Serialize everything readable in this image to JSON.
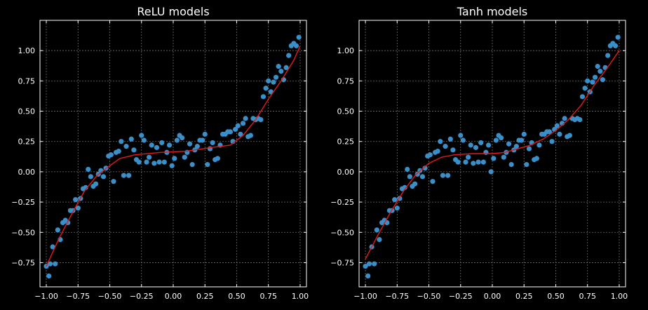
{
  "chart_data": [
    {
      "type": "scatter",
      "title": "ReLU models",
      "xlabel": "",
      "ylabel": "",
      "xlim": [
        -1.05,
        1.05
      ],
      "ylim": [
        -0.95,
        1.25
      ],
      "xticks": [
        -1.0,
        -0.75,
        -0.5,
        -0.25,
        0.0,
        0.25,
        0.5,
        0.75,
        1.0
      ],
      "yticks": [
        -0.75,
        -0.5,
        -0.25,
        0.0,
        0.25,
        0.5,
        0.75,
        1.0
      ],
      "xtick_labels": [
        "−1.00",
        "−0.75",
        "−0.50",
        "−0.25",
        "0.00",
        "0.25",
        "0.50",
        "0.75",
        "1.00"
      ],
      "ytick_labels": [
        "−0.75",
        "−0.50",
        "−0.25",
        "0.00",
        "0.25",
        "0.50",
        "0.75",
        "1.00"
      ],
      "grid": true,
      "series": [
        {
          "kind": "scatter",
          "color": "#3a8fc9",
          "points": [
            [
              -1.0,
              -0.78
            ],
            [
              -0.98,
              -0.86
            ],
            [
              -0.97,
              -0.76
            ],
            [
              -0.95,
              -0.62
            ],
            [
              -0.93,
              -0.76
            ],
            [
              -0.91,
              -0.48
            ],
            [
              -0.89,
              -0.56
            ],
            [
              -0.87,
              -0.42
            ],
            [
              -0.85,
              -0.4
            ],
            [
              -0.83,
              -0.42
            ],
            [
              -0.81,
              -0.32
            ],
            [
              -0.79,
              -0.32
            ],
            [
              -0.77,
              -0.23
            ],
            [
              -0.75,
              -0.3
            ],
            [
              -0.73,
              -0.22
            ],
            [
              -0.71,
              -0.14
            ],
            [
              -0.69,
              -0.13
            ],
            [
              -0.67,
              0.02
            ],
            [
              -0.65,
              -0.04
            ],
            [
              -0.63,
              -0.12
            ],
            [
              -0.61,
              -0.1
            ],
            [
              -0.59,
              -0.02
            ],
            [
              -0.57,
              0.01
            ],
            [
              -0.55,
              -0.04
            ],
            [
              -0.53,
              0.03
            ],
            [
              -0.51,
              0.13
            ],
            [
              -0.49,
              0.14
            ],
            [
              -0.47,
              -0.08
            ],
            [
              -0.45,
              0.16
            ],
            [
              -0.43,
              0.17
            ],
            [
              -0.41,
              0.25
            ],
            [
              -0.39,
              -0.03
            ],
            [
              -0.37,
              0.21
            ],
            [
              -0.35,
              -0.03
            ],
            [
              -0.33,
              0.27
            ],
            [
              -0.31,
              0.18
            ],
            [
              -0.29,
              0.1
            ],
            [
              -0.27,
              0.08
            ],
            [
              -0.25,
              0.3
            ],
            [
              -0.23,
              0.26
            ],
            [
              -0.21,
              0.08
            ],
            [
              -0.19,
              0.12
            ],
            [
              -0.17,
              0.22
            ],
            [
              -0.15,
              0.07
            ],
            [
              -0.13,
              0.2
            ],
            [
              -0.11,
              0.08
            ],
            [
              -0.09,
              0.24
            ],
            [
              -0.07,
              0.08
            ],
            [
              -0.05,
              0.16
            ],
            [
              -0.03,
              0.22
            ],
            [
              -0.01,
              0.05
            ],
            [
              0.01,
              0.11
            ],
            [
              0.03,
              0.26
            ],
            [
              0.05,
              0.3
            ],
            [
              0.07,
              0.28
            ],
            [
              0.09,
              0.12
            ],
            [
              0.11,
              0.16
            ],
            [
              0.13,
              0.23
            ],
            [
              0.15,
              0.06
            ],
            [
              0.17,
              0.18
            ],
            [
              0.19,
              0.21
            ],
            [
              0.21,
              0.26
            ],
            [
              0.23,
              0.26
            ],
            [
              0.25,
              0.31
            ],
            [
              0.27,
              0.06
            ],
            [
              0.29,
              0.19
            ],
            [
              0.31,
              0.24
            ],
            [
              0.33,
              0.1
            ],
            [
              0.35,
              0.11
            ],
            [
              0.37,
              0.22
            ],
            [
              0.39,
              0.31
            ],
            [
              0.41,
              0.31
            ],
            [
              0.43,
              0.33
            ],
            [
              0.45,
              0.33
            ],
            [
              0.47,
              0.25
            ],
            [
              0.49,
              0.35
            ],
            [
              0.51,
              0.38
            ],
            [
              0.53,
              0.31
            ],
            [
              0.55,
              0.4
            ],
            [
              0.57,
              0.44
            ],
            [
              0.59,
              0.29
            ],
            [
              0.61,
              0.3
            ],
            [
              0.63,
              0.44
            ],
            [
              0.65,
              0.43
            ],
            [
              0.67,
              0.44
            ],
            [
              0.69,
              0.43
            ],
            [
              0.71,
              0.62
            ],
            [
              0.73,
              0.69
            ],
            [
              0.75,
              0.75
            ],
            [
              0.77,
              0.66
            ],
            [
              0.79,
              0.74
            ],
            [
              0.81,
              0.78
            ],
            [
              0.83,
              0.87
            ],
            [
              0.85,
              0.83
            ],
            [
              0.87,
              0.76
            ],
            [
              0.89,
              0.86
            ],
            [
              0.91,
              0.96
            ],
            [
              0.93,
              1.04
            ],
            [
              0.95,
              1.06
            ],
            [
              0.97,
              1.04
            ],
            [
              0.99,
              1.11
            ]
          ]
        },
        {
          "kind": "line",
          "color": "#e31a1c",
          "points": [
            [
              -1.0,
              -0.78
            ],
            [
              -0.9,
              -0.55
            ],
            [
              -0.8,
              -0.35
            ],
            [
              -0.7,
              -0.16
            ],
            [
              -0.6,
              -0.03
            ],
            [
              -0.5,
              0.05
            ],
            [
              -0.42,
              0.11
            ],
            [
              -0.3,
              0.14
            ],
            [
              -0.1,
              0.16
            ],
            [
              0.1,
              0.17
            ],
            [
              0.3,
              0.2
            ],
            [
              0.45,
              0.22
            ],
            [
              0.55,
              0.3
            ],
            [
              0.65,
              0.43
            ],
            [
              0.75,
              0.6
            ],
            [
              0.85,
              0.75
            ],
            [
              0.95,
              0.92
            ],
            [
              1.0,
              1.04
            ]
          ]
        }
      ]
    },
    {
      "type": "scatter",
      "title": "Tanh models",
      "xlabel": "",
      "ylabel": "",
      "xlim": [
        -1.05,
        1.05
      ],
      "ylim": [
        -0.95,
        1.25
      ],
      "xticks": [
        -1.0,
        -0.75,
        -0.5,
        -0.25,
        0.0,
        0.25,
        0.5,
        0.75,
        1.0
      ],
      "yticks": [
        -0.75,
        -0.5,
        -0.25,
        0.0,
        0.25,
        0.5,
        0.75,
        1.0
      ],
      "xtick_labels": [
        "−1.00",
        "−0.75",
        "−0.50",
        "−0.25",
        "0.00",
        "0.25",
        "0.50",
        "0.75",
        "1.00"
      ],
      "ytick_labels": [
        "−0.75",
        "−0.50",
        "−0.25",
        "0.00",
        "0.25",
        "0.50",
        "0.75",
        "1.00"
      ],
      "grid": true,
      "series": [
        {
          "kind": "scatter",
          "color": "#3a8fc9",
          "points": [
            [
              -1.0,
              -0.78
            ],
            [
              -0.98,
              -0.86
            ],
            [
              -0.97,
              -0.76
            ],
            [
              -0.95,
              -0.62
            ],
            [
              -0.93,
              -0.76
            ],
            [
              -0.91,
              -0.48
            ],
            [
              -0.89,
              -0.56
            ],
            [
              -0.87,
              -0.42
            ],
            [
              -0.85,
              -0.4
            ],
            [
              -0.83,
              -0.42
            ],
            [
              -0.81,
              -0.32
            ],
            [
              -0.79,
              -0.32
            ],
            [
              -0.77,
              -0.23
            ],
            [
              -0.75,
              -0.3
            ],
            [
              -0.73,
              -0.22
            ],
            [
              -0.71,
              -0.14
            ],
            [
              -0.69,
              -0.13
            ],
            [
              -0.67,
              0.02
            ],
            [
              -0.65,
              -0.04
            ],
            [
              -0.63,
              -0.12
            ],
            [
              -0.61,
              -0.1
            ],
            [
              -0.59,
              -0.02
            ],
            [
              -0.57,
              0.01
            ],
            [
              -0.55,
              -0.04
            ],
            [
              -0.53,
              0.03
            ],
            [
              -0.51,
              0.13
            ],
            [
              -0.49,
              0.14
            ],
            [
              -0.47,
              -0.08
            ],
            [
              -0.45,
              0.16
            ],
            [
              -0.43,
              0.17
            ],
            [
              -0.41,
              0.25
            ],
            [
              -0.39,
              -0.03
            ],
            [
              -0.37,
              0.21
            ],
            [
              -0.35,
              -0.03
            ],
            [
              -0.33,
              0.27
            ],
            [
              -0.31,
              0.18
            ],
            [
              -0.29,
              0.1
            ],
            [
              -0.27,
              0.08
            ],
            [
              -0.25,
              0.3
            ],
            [
              -0.23,
              0.26
            ],
            [
              -0.21,
              0.08
            ],
            [
              -0.19,
              0.12
            ],
            [
              -0.17,
              0.22
            ],
            [
              -0.15,
              0.07
            ],
            [
              -0.13,
              0.2
            ],
            [
              -0.11,
              0.08
            ],
            [
              -0.09,
              0.24
            ],
            [
              -0.07,
              0.08
            ],
            [
              -0.05,
              0.16
            ],
            [
              -0.03,
              0.22
            ],
            [
              -0.01,
              0.0
            ],
            [
              0.01,
              0.11
            ],
            [
              0.03,
              0.26
            ],
            [
              0.05,
              0.3
            ],
            [
              0.07,
              0.28
            ],
            [
              0.09,
              0.12
            ],
            [
              0.11,
              0.16
            ],
            [
              0.13,
              0.23
            ],
            [
              0.15,
              0.06
            ],
            [
              0.17,
              0.18
            ],
            [
              0.19,
              0.21
            ],
            [
              0.21,
              0.26
            ],
            [
              0.23,
              0.26
            ],
            [
              0.25,
              0.31
            ],
            [
              0.27,
              0.06
            ],
            [
              0.29,
              0.19
            ],
            [
              0.31,
              0.24
            ],
            [
              0.33,
              0.1
            ],
            [
              0.35,
              0.11
            ],
            [
              0.37,
              0.22
            ],
            [
              0.39,
              0.31
            ],
            [
              0.41,
              0.31
            ],
            [
              0.43,
              0.33
            ],
            [
              0.45,
              0.33
            ],
            [
              0.47,
              0.25
            ],
            [
              0.49,
              0.35
            ],
            [
              0.51,
              0.38
            ],
            [
              0.53,
              0.31
            ],
            [
              0.55,
              0.4
            ],
            [
              0.57,
              0.44
            ],
            [
              0.59,
              0.29
            ],
            [
              0.61,
              0.3
            ],
            [
              0.63,
              0.44
            ],
            [
              0.65,
              0.43
            ],
            [
              0.67,
              0.44
            ],
            [
              0.69,
              0.43
            ],
            [
              0.71,
              0.62
            ],
            [
              0.73,
              0.69
            ],
            [
              0.75,
              0.75
            ],
            [
              0.77,
              0.66
            ],
            [
              0.79,
              0.74
            ],
            [
              0.81,
              0.78
            ],
            [
              0.83,
              0.87
            ],
            [
              0.85,
              0.83
            ],
            [
              0.87,
              0.76
            ],
            [
              0.89,
              0.86
            ],
            [
              0.91,
              0.96
            ],
            [
              0.93,
              1.04
            ],
            [
              0.95,
              1.06
            ],
            [
              0.97,
              1.04
            ],
            [
              0.99,
              1.11
            ]
          ]
        },
        {
          "kind": "line",
          "color": "#e31a1c",
          "points": [
            [
              -1.0,
              -0.72
            ],
            [
              -0.9,
              -0.52
            ],
            [
              -0.8,
              -0.33
            ],
            [
              -0.7,
              -0.16
            ],
            [
              -0.6,
              -0.02
            ],
            [
              -0.5,
              0.07
            ],
            [
              -0.4,
              0.12
            ],
            [
              -0.3,
              0.14
            ],
            [
              -0.15,
              0.15
            ],
            [
              0.0,
              0.15
            ],
            [
              0.1,
              0.16
            ],
            [
              0.2,
              0.19
            ],
            [
              0.3,
              0.22
            ],
            [
              0.4,
              0.27
            ],
            [
              0.5,
              0.34
            ],
            [
              0.6,
              0.43
            ],
            [
              0.7,
              0.55
            ],
            [
              0.8,
              0.71
            ],
            [
              0.9,
              0.85
            ],
            [
              1.0,
              1.0
            ]
          ]
        }
      ]
    }
  ]
}
